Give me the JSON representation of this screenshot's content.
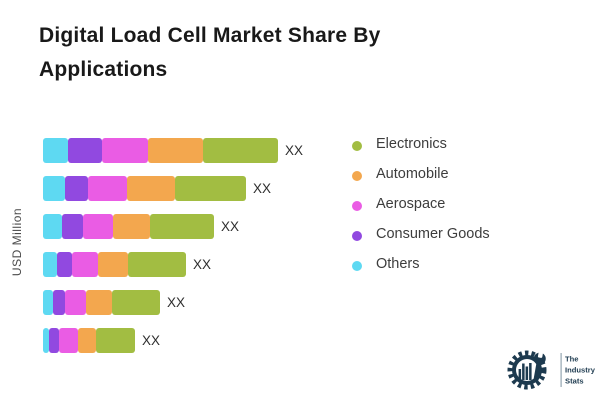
{
  "title": "Digital Load Cell Market Share By Applications",
  "y_axis_label": "USD Million",
  "legend": {
    "items": [
      {
        "label": "Electronics",
        "color": "#a2bd42"
      },
      {
        "label": "Automobile",
        "color": "#f3a74e"
      },
      {
        "label": "Aerospace",
        "color": "#ea5ce4"
      },
      {
        "label": "Consumer Goods",
        "color": "#9149e0"
      },
      {
        "label": "Others",
        "color": "#5ed9f2"
      }
    ]
  },
  "chart_data": {
    "type": "bar",
    "variant": "horizontal-stacked",
    "title": "Digital Load Cell Market Share By Applications",
    "xlabel": "",
    "ylabel": "USD Million",
    "categories": [
      "",
      "",
      "",
      "",
      "",
      ""
    ],
    "series": [
      {
        "name": "Others",
        "color": "#5ed9f2",
        "values": [
          25,
          22,
          19,
          14,
          10,
          6
        ]
      },
      {
        "name": "Consumer Goods",
        "color": "#9149e0",
        "values": [
          34,
          23,
          21,
          15,
          12,
          10
        ]
      },
      {
        "name": "Aerospace",
        "color": "#ea5ce4",
        "values": [
          46,
          39,
          30,
          26,
          21,
          19
        ]
      },
      {
        "name": "Automobile",
        "color": "#f3a74e",
        "values": [
          55,
          48,
          37,
          30,
          26,
          18
        ]
      },
      {
        "name": "Electronics",
        "color": "#a2bd42",
        "values": [
          75,
          71,
          64,
          58,
          48,
          39
        ]
      }
    ],
    "values_are": "relative segment lengths (numeric labels masked in source image)",
    "value_labels": [
      "XX",
      "XX",
      "XX",
      "XX",
      "XX",
      "XX"
    ],
    "legend_position": "right",
    "legend_order": [
      "Electronics",
      "Automobile",
      "Aerospace",
      "Consumer Goods",
      "Others"
    ],
    "grid": false,
    "axis_ticks_visible": false
  },
  "logo": {
    "lines": [
      "The",
      "Industry",
      "Stats"
    ],
    "color": "#1d3a4f"
  }
}
